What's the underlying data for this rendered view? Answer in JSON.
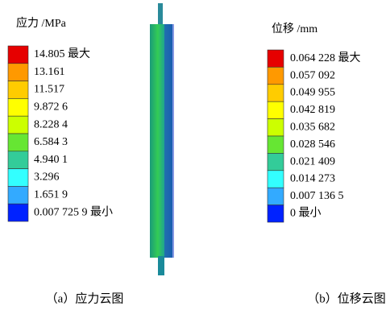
{
  "legends": [
    {
      "title": "应力 /MPa",
      "labels": [
        "14.805  最大",
        "13.161",
        "11.517",
        "9.872 6",
        "8.228 4",
        "6.584 3",
        "4.940 1",
        "3.296",
        "1.651 9",
        "0.007 725 9  最小"
      ],
      "colors": [
        "#e60000",
        "#ff9900",
        "#ffcc00",
        "#ffff00",
        "#ccff00",
        "#66e633",
        "#33cc99",
        "#33ffff",
        "#33aaff",
        "#0022ff"
      ],
      "caption": "（a）应力云图"
    },
    {
      "title": "位移 /mm",
      "labels": [
        "0.064 228  最大",
        "0.057 092",
        "0.049 955",
        "0.042 819",
        "0.035 682",
        "0.028 546",
        "0.021 409",
        "0.014 273",
        "0.007 136 5",
        "0  最小"
      ],
      "colors": [
        "#e60000",
        "#ff9900",
        "#ffcc00",
        "#ffff00",
        "#ccff00",
        "#66e633",
        "#33cc99",
        "#33ffff",
        "#33aaff",
        "#0022ff"
      ],
      "caption": "（b）位移云图"
    }
  ]
}
